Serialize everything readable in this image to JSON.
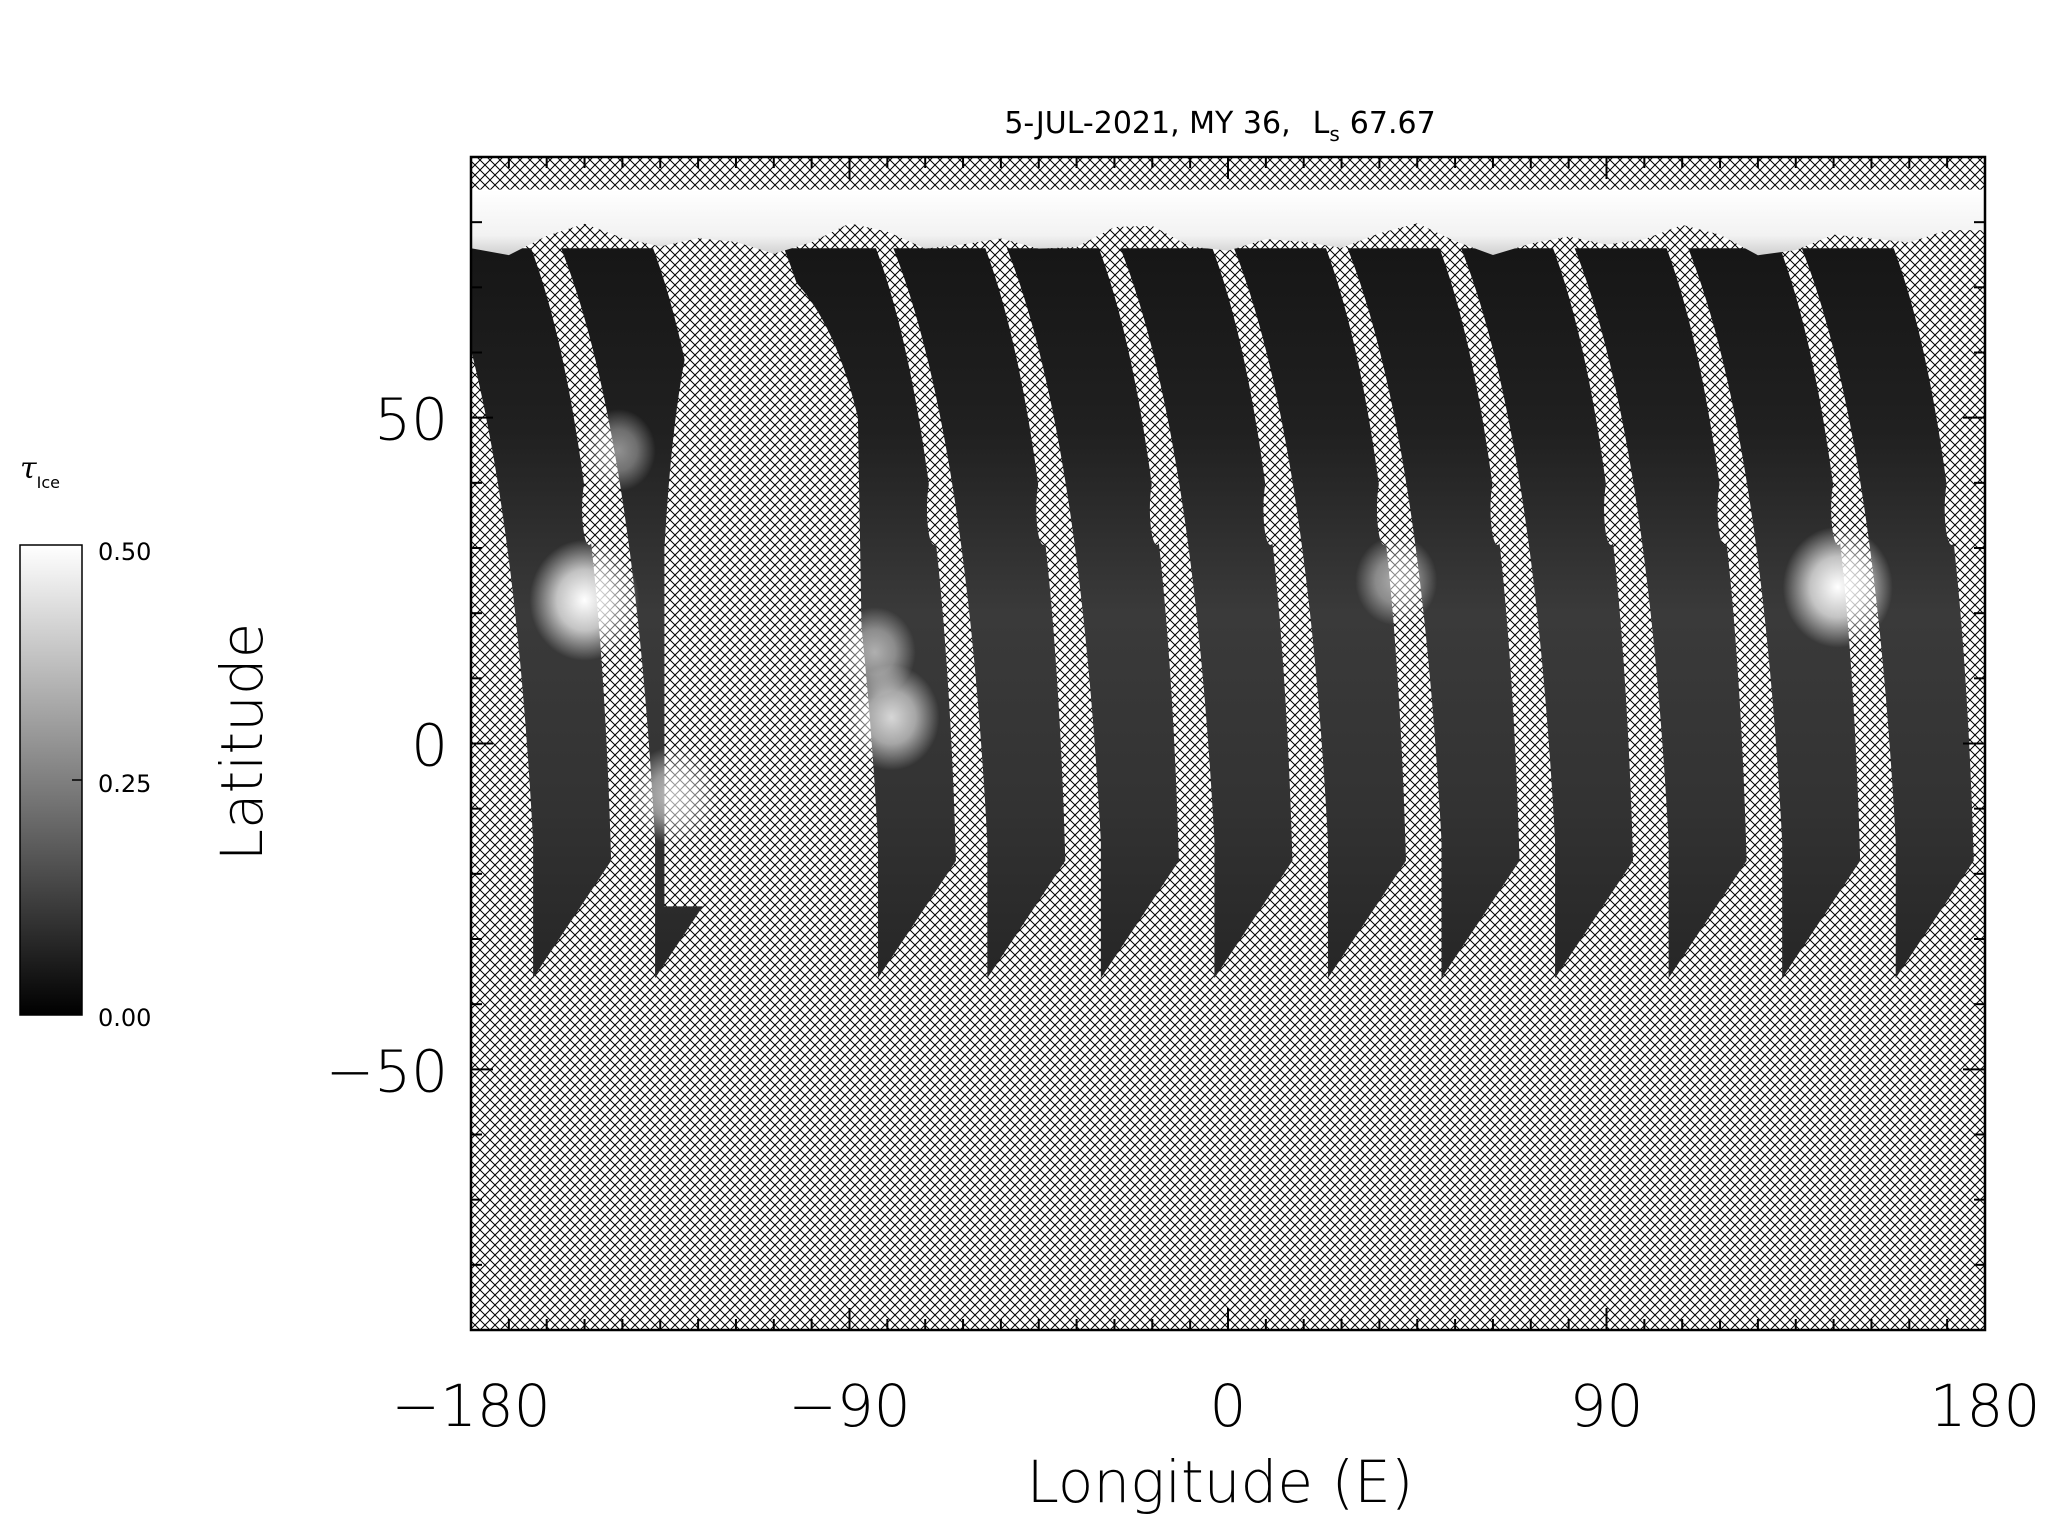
{
  "chart_data": {
    "type": "heatmap",
    "title": {
      "date_text": "5-JUL-2021, MY 36,",
      "ls_symbol": "L",
      "ls_sub": "s",
      "ls_value": "67.67"
    },
    "xlabel": "Longitude (E)",
    "ylabel": "Latitude",
    "xlim": [
      -180,
      180
    ],
    "ylim": [
      -90,
      90
    ],
    "x_ticks": [
      -180,
      -90,
      0,
      90,
      180
    ],
    "x_tick_labels": [
      "−180",
      "−90",
      "0",
      "90",
      "180"
    ],
    "y_ticks": [
      50,
      0,
      -50
    ],
    "y_tick_labels": [
      "50",
      "0",
      "−50"
    ],
    "x_minor_step": 9,
    "y_minor_step": 10,
    "colorbar": {
      "label_main": "τ",
      "label_sub": "Ice",
      "range": [
        0,
        0.5
      ],
      "tick_labels": [
        "0.50",
        "0.25",
        "0.00"
      ],
      "colors": [
        "#000000",
        "#ffffff"
      ]
    },
    "no_data_pattern": "cross-hatch",
    "polar_cap_lat_range": [
      76,
      85
    ],
    "swath_coverage_lat_range": [
      -36,
      76
    ],
    "swaths": [
      {
        "center_lon": -160,
        "south_lat": -36,
        "north_lat": 76
      },
      {
        "center_lon": -131,
        "south_lat": -36,
        "north_lat": 76
      },
      {
        "center_lon": -78,
        "south_lat": -36,
        "north_lat": 76
      },
      {
        "center_lon": -52,
        "south_lat": -36,
        "north_lat": 76
      },
      {
        "center_lon": -25,
        "south_lat": -36,
        "north_lat": 76
      },
      {
        "center_lon": 2,
        "south_lat": -36,
        "north_lat": 76
      },
      {
        "center_lon": 29,
        "south_lat": -36,
        "north_lat": 76
      },
      {
        "center_lon": 56,
        "south_lat": -36,
        "north_lat": 76
      },
      {
        "center_lon": 83,
        "south_lat": -36,
        "north_lat": 76
      },
      {
        "center_lon": 110,
        "south_lat": -36,
        "north_lat": 76
      },
      {
        "center_lon": 137,
        "south_lat": -36,
        "north_lat": 76
      },
      {
        "center_lon": 164,
        "south_lat": -36,
        "north_lat": 76
      }
    ],
    "bright_clouds": [
      {
        "lon": -153,
        "lat": 22,
        "tau": 0.5
      },
      {
        "lon": -132,
        "lat": -8,
        "tau": 0.35
      },
      {
        "lon": -80,
        "lat": 4,
        "tau": 0.4
      },
      {
        "lon": -84,
        "lat": 14,
        "tau": 0.3
      },
      {
        "lon": 40,
        "lat": 25,
        "tau": 0.3
      },
      {
        "lon": 145,
        "lat": 24,
        "tau": 0.5
      },
      {
        "lon": -145,
        "lat": 45,
        "tau": 0.25
      }
    ]
  }
}
